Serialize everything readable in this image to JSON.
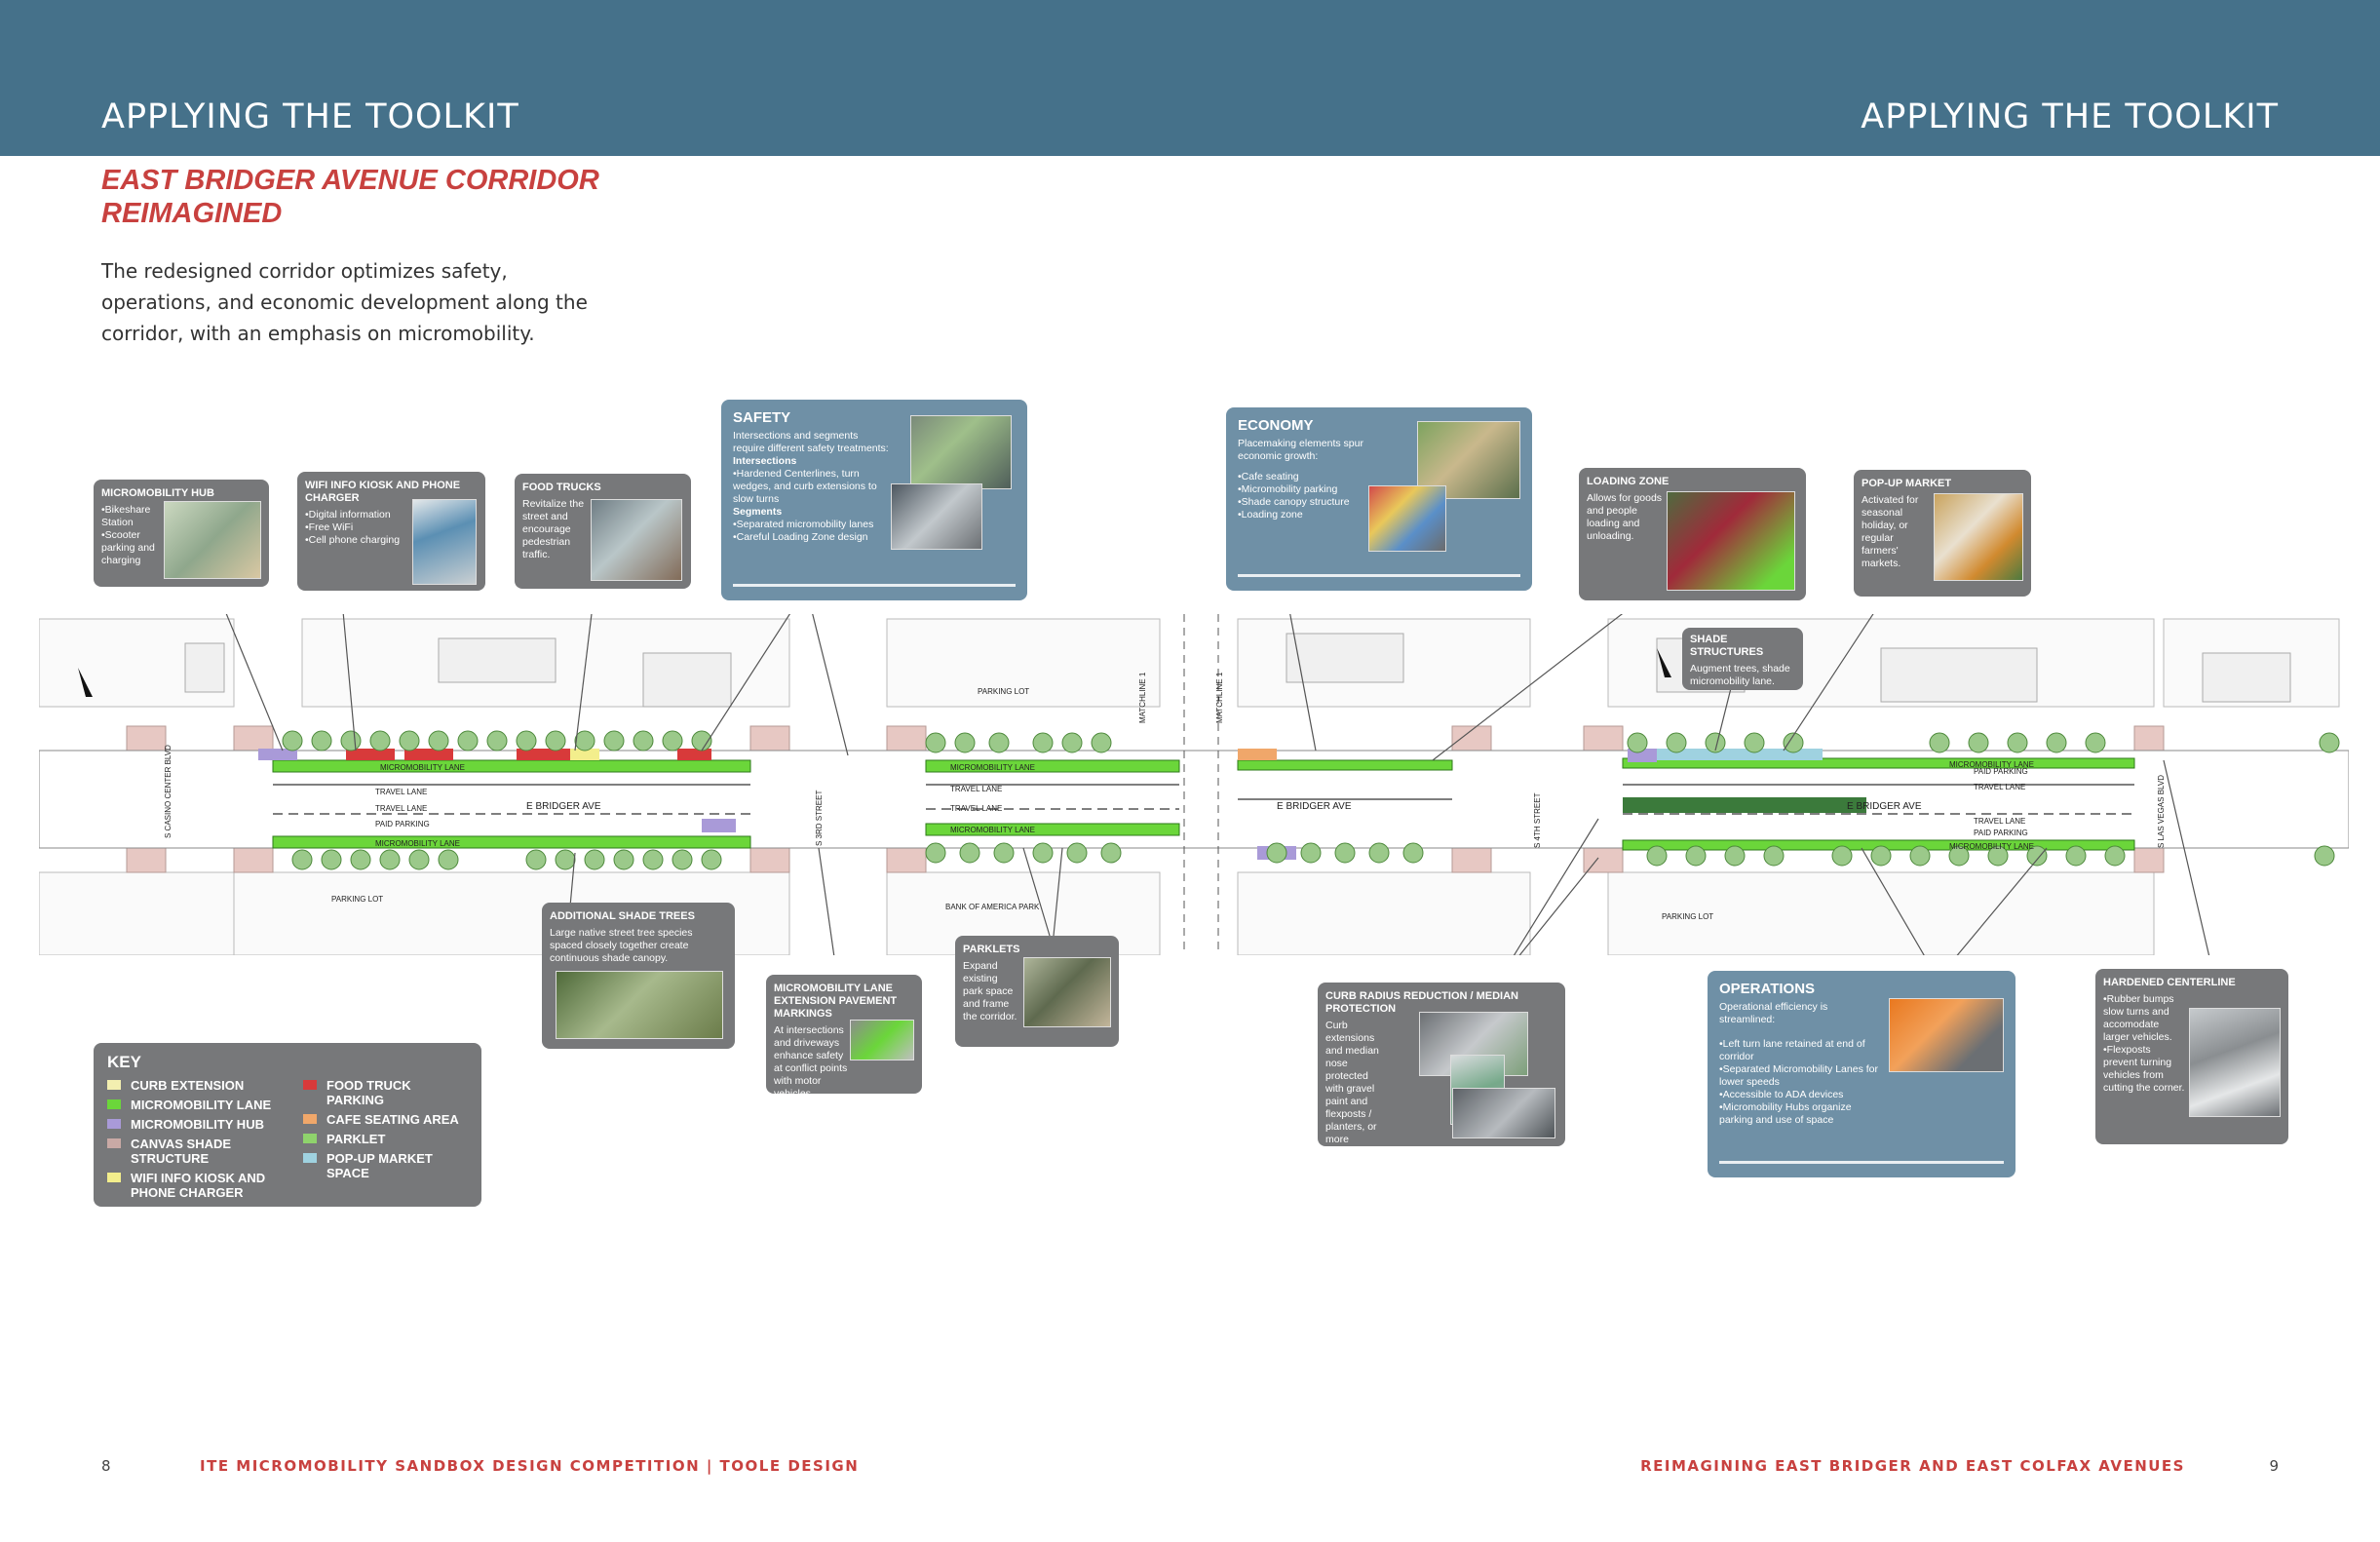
{
  "header": {
    "left_title": "APPLYING THE TOOLKIT",
    "right_title": "APPLYING THE TOOLKIT",
    "bg_color": "#45718a"
  },
  "section_title": "EAST BRIDGER AVENUE CORRIDOR REIMAGINED",
  "intro_text": "The redesigned corridor optimizes safety, operations, and economic development along the corridor, with an emphasis on micromobility.",
  "callouts": {
    "micromobility_hub": {
      "title": "MICROMOBILITY HUB",
      "lines": [
        "•Bikeshare Station",
        "•Scooter parking and charging"
      ]
    },
    "wifi_kiosk": {
      "title": "WIFI INFO KIOSK AND PHONE CHARGER",
      "lines": [
        "•Digital information",
        "•Free WiFi",
        "•Cell phone charging"
      ]
    },
    "food_trucks": {
      "title": "FOOD TRUCKS",
      "text": "Revitalize the street and encourage pedestrian traffic."
    },
    "safety": {
      "title": "SAFETY",
      "intro": "Intersections and segments require different safety treatments:",
      "sub1": "Intersections",
      "sub1_text": "•Hardened Centerlines, turn wedges, and curb extensions to slow turns",
      "sub2": "Segments",
      "sub2_lines": [
        "•Separated micromobility lanes",
        "•Careful Loading Zone design"
      ]
    },
    "economy": {
      "title": "ECONOMY",
      "intro": "Placemaking elements spur economic growth:",
      "lines": [
        "•Cafe seating",
        "•Micromobility parking",
        "•Shade canopy structure",
        "•Loading zone"
      ]
    },
    "loading_zone": {
      "title": "LOADING ZONE",
      "text": "Allows for goods and people loading and unloading."
    },
    "popup_market": {
      "title": "POP-UP MARKET",
      "text": "Activated for seasonal holiday, or regular farmers' markets."
    },
    "shade_structures": {
      "title": "SHADE STRUCTURES",
      "text": "Augment trees, shade micromobility lane."
    },
    "additional_shade_trees": {
      "title": "ADDITIONAL SHADE TREES",
      "text": "Large native street tree species spaced closely together create continuous shade canopy."
    },
    "mm_lane_extension": {
      "title": "MICROMOBILITY LANE EXTENSION PAVEMENT MARKINGS",
      "text": "At intersections and driveways enhance safety at conflict points with motor vehicles."
    },
    "parklets": {
      "title": "PARKLETS",
      "text": "Expand existing park space and frame the corridor."
    },
    "curb_radius": {
      "title": "CURB RADIUS REDUCTION / MEDIAN PROTECTION",
      "text": "Curb extensions and median nose protected with gravel paint and flexposts / planters, or more permenant materials."
    },
    "operations": {
      "title": "OPERATIONS",
      "intro": "Operational efficiency is streamlined:",
      "lines": [
        "•Left turn lane retained at end of corridor",
        "•Separated Micromobility Lanes for lower speeds",
        "•Accessible to ADA devices",
        "•Micromobility Hubs organize parking and use of space"
      ]
    },
    "hardened_centerline": {
      "title": "HARDENED CENTERLINE",
      "lines": [
        "•Rubber bumps slow turns and accomodate larger vehicles.",
        "•Flexposts prevent turning vehicles from cutting the corner."
      ]
    }
  },
  "map_labels": {
    "micromobility_lane": "MICROMOBILITY LANE",
    "travel_lane": "TRAVEL LANE",
    "paid_parking": "PAID PARKING",
    "street": "E BRIDGER AVE",
    "parking_lot": "PARKING LOT",
    "bank_park": "BANK OF AMERICA PARK",
    "matchline": "MATCHLINE 1",
    "s_casino": "S CASINO CENTER BLVD",
    "s_3rd": "S 3RD STREET",
    "s_4th": "S 4TH STREET",
    "s_las_vegas": "S LAS VEGAS BLVD"
  },
  "key": {
    "title": "KEY",
    "items_left": [
      {
        "label": "CURB EXTENSION",
        "color": "#f3efb0"
      },
      {
        "label": "MICROMOBILITY LANE",
        "color": "#6bd63a"
      },
      {
        "label": "MICROMOBILITY HUB",
        "color": "#a99ad8"
      },
      {
        "label": "CANVAS SHADE STRUCTURE",
        "color": "#c9a9a5"
      },
      {
        "label": "WIFI INFO KIOSK AND PHONE CHARGER",
        "color": "#f3ee8c"
      }
    ],
    "items_right": [
      {
        "label": "FOOD TRUCK PARKING",
        "color": "#d83a3a"
      },
      {
        "label": "CAFE SEATING AREA",
        "color": "#f0a76a"
      },
      {
        "label": "PARKLET",
        "color": "#8fd36c"
      },
      {
        "label": "POP-UP MARKET SPACE",
        "color": "#9fd2e0"
      }
    ]
  },
  "footer": {
    "left_page": "8",
    "left_text": "ITE MICROMOBILITY SANDBOX DESIGN COMPETITION | TOOLE DESIGN",
    "right_text": "REIMAGINING EAST BRIDGER AND EAST COLFAX AVENUES",
    "right_page": "9"
  }
}
